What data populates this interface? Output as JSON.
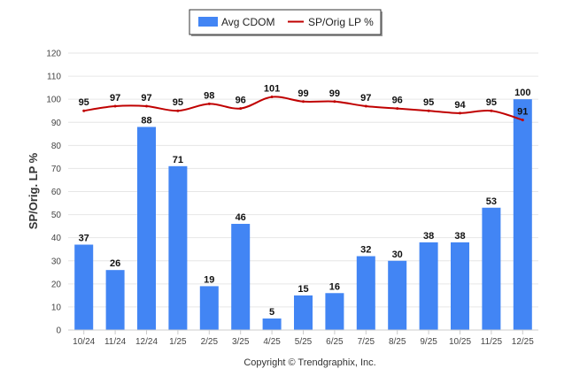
{
  "colors": {
    "bar": "#4285f4",
    "line": "#c00000",
    "grid": "#e6e6e6",
    "axis": "#cccccc",
    "legend_border": "#333333",
    "legend_shadow": "#999999"
  },
  "footer": {
    "copyright": "Copyright © Trendgraphix, Inc."
  },
  "chart_data": {
    "type": "bar",
    "title": "",
    "xlabel": "",
    "ylabel": "SP/Orig. LP %",
    "ylim": [
      0,
      120
    ],
    "yticks": [
      0,
      10,
      20,
      30,
      40,
      50,
      60,
      70,
      80,
      90,
      100,
      110,
      120
    ],
    "grid": true,
    "legend_position": "top-center",
    "categories": [
      "10/24",
      "11/24",
      "12/24",
      "1/25",
      "2/25",
      "3/25",
      "4/25",
      "5/25",
      "6/25",
      "7/25",
      "8/25",
      "9/25",
      "10/25",
      "11/25",
      "12/25"
    ],
    "series": [
      {
        "name": "Avg CDOM",
        "type": "bar",
        "values": [
          37,
          26,
          88,
          71,
          19,
          46,
          5,
          15,
          16,
          32,
          30,
          38,
          38,
          53,
          100
        ]
      },
      {
        "name": "SP/Orig LP %",
        "type": "line",
        "values": [
          95,
          97,
          97,
          95,
          98,
          96,
          101,
          99,
          99,
          97,
          96,
          95,
          94,
          95,
          91
        ]
      }
    ]
  }
}
